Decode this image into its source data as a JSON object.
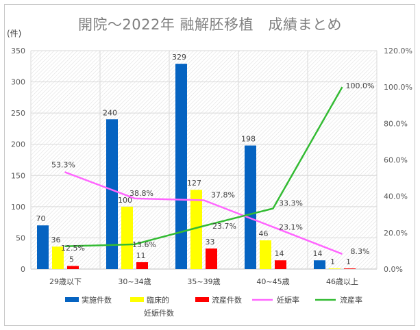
{
  "chart_data": {
    "type": "bar+line",
    "title": "開院～2022年 融解胚移植　成績まとめ",
    "y_unit_label": "(件)",
    "categories": [
      "29歳以下",
      "30~34歳",
      "35~39歳",
      "40~45歳",
      "46歳以上"
    ],
    "bar_series": [
      {
        "name": "実施件数",
        "color": "#0563C1",
        "values": [
          70,
          240,
          329,
          198,
          14
        ]
      },
      {
        "name_lines": [
          "臨床的",
          "妊娠件数"
        ],
        "name": "臨床的妊娠件数",
        "color": "#FFFF00",
        "values": [
          36,
          100,
          127,
          46,
          1
        ]
      },
      {
        "name": "流産件数",
        "color": "#FF0000",
        "values": [
          5,
          11,
          33,
          14,
          1
        ]
      }
    ],
    "line_series": [
      {
        "name": "妊娠率",
        "color": "#FF66FF",
        "values": [
          53.3,
          38.8,
          37.8,
          23.1,
          8.3
        ],
        "labels": [
          "53.3%",
          "38.8%",
          "37.8%",
          "23.1%",
          "8.3%"
        ]
      },
      {
        "name": "流産率",
        "color": "#33BB33",
        "values": [
          12.5,
          13.6,
          23.7,
          33.3,
          100.0
        ],
        "labels": [
          "12.5%",
          "13.6%",
          "23.7%",
          "33.3%",
          "100.0%"
        ]
      }
    ],
    "y_left": {
      "min": 0,
      "max": 350,
      "ticks": [
        "0",
        "50",
        "100",
        "150",
        "200",
        "250",
        "300",
        "350"
      ]
    },
    "y_right": {
      "min": 0,
      "max": 120,
      "ticks": [
        "0.0%",
        "20.0%",
        "40.0%",
        "60.0%",
        "80.0%",
        "100.0%",
        "120.0%"
      ]
    },
    "grid": true,
    "legend_position": "bottom"
  }
}
